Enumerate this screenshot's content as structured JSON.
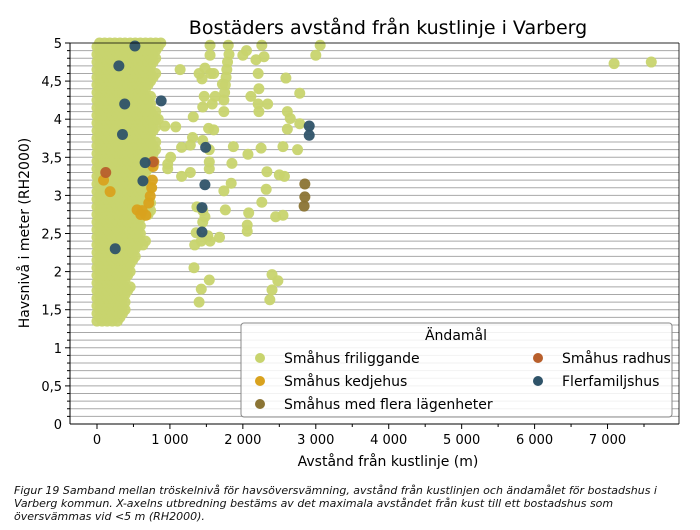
{
  "chart_data": {
    "type": "scatter",
    "title": "Bostäders avstånd från kustlinje i Varberg",
    "xlabel": "Avstånd från kustlinje (m)",
    "ylabel": "Havsnivå i meter (RH2000)",
    "xlim": [
      -370,
      7980
    ],
    "ylim": [
      0,
      5
    ],
    "x_ticks": [
      0,
      1000,
      2000,
      3000,
      4000,
      5000,
      6000,
      7000
    ],
    "x_tick_labels": [
      "0",
      "1 000",
      "2 000",
      "3 000",
      "4 000",
      "5 000",
      "6 000",
      "7 000"
    ],
    "y_ticks": [
      0,
      0.5,
      1,
      1.5,
      2,
      2.5,
      3,
      3.5,
      4,
      4.5,
      5
    ],
    "y_tick_labels": [
      "0",
      "0,5",
      "1",
      "1,5",
      "2",
      "2,5",
      "3",
      "3,5",
      "4",
      "4,5",
      "5"
    ],
    "grid": "horizontal, every 0.1 m",
    "legend": {
      "title": "Ändamål",
      "placement": "lower-right"
    },
    "series": [
      {
        "name": "Småhus friliggande",
        "color": "#c8d46e",
        "band_rows_y_xmin_xmax": [
          [
            1.35,
            0,
            300
          ],
          [
            1.45,
            0,
            350
          ],
          [
            1.55,
            0,
            400
          ],
          [
            1.65,
            0,
            380
          ],
          [
            1.75,
            0,
            420
          ],
          [
            1.85,
            0,
            400
          ],
          [
            1.95,
            0,
            450
          ],
          [
            2.05,
            0,
            480
          ],
          [
            2.15,
            0,
            500
          ],
          [
            2.25,
            0,
            550
          ],
          [
            2.35,
            0,
            650
          ],
          [
            2.45,
            0,
            580
          ],
          [
            2.55,
            0,
            560
          ],
          [
            2.65,
            0,
            600
          ],
          [
            2.75,
            0,
            700
          ],
          [
            2.85,
            0,
            720
          ],
          [
            2.95,
            0,
            650
          ],
          [
            3.05,
            0,
            700
          ],
          [
            3.15,
            0,
            650
          ],
          [
            3.25,
            0,
            680
          ],
          [
            3.35,
            0,
            700
          ],
          [
            3.45,
            0,
            720
          ],
          [
            3.55,
            0,
            780
          ],
          [
            3.65,
            0,
            800
          ],
          [
            3.75,
            0,
            750
          ],
          [
            3.85,
            0,
            820
          ],
          [
            3.95,
            0,
            780
          ],
          [
            4.05,
            0,
            800
          ],
          [
            4.15,
            0,
            760
          ],
          [
            4.25,
            0,
            700
          ],
          [
            4.35,
            0,
            650
          ],
          [
            4.45,
            0,
            700
          ],
          [
            4.55,
            0,
            780
          ],
          [
            4.65,
            0,
            760
          ],
          [
            4.75,
            0,
            800
          ],
          [
            4.85,
            0,
            820
          ],
          [
            4.95,
            0,
            850
          ]
        ],
        "points": [
          [
            1140,
            4.65
          ],
          [
            1550,
            4.97
          ],
          [
            1560,
            4.6
          ],
          [
            1440,
            4.53
          ],
          [
            1480,
            4.67
          ],
          [
            1550,
            4.84
          ],
          [
            2000,
            4.84
          ],
          [
            1800,
            4.97
          ],
          [
            1810,
            4.85
          ],
          [
            1790,
            4.75
          ],
          [
            1780,
            4.65
          ],
          [
            1770,
            4.55
          ],
          [
            1760,
            4.45
          ],
          [
            1750,
            4.35
          ],
          [
            1740,
            4.25
          ],
          [
            1720,
            4.46
          ],
          [
            1620,
            4.3
          ],
          [
            1580,
            4.2
          ],
          [
            1470,
            4.3
          ],
          [
            1450,
            4.16
          ],
          [
            1740,
            4.1
          ],
          [
            2260,
            4.97
          ],
          [
            2050,
            4.9
          ],
          [
            2210,
            4.6
          ],
          [
            2220,
            4.4
          ],
          [
            2110,
            4.3
          ],
          [
            2210,
            4.2
          ],
          [
            2340,
            4.2
          ],
          [
            2220,
            4.1
          ],
          [
            2290,
            4.82
          ],
          [
            2180,
            4.78
          ],
          [
            2590,
            4.54
          ],
          [
            2780,
            4.34
          ],
          [
            3060,
            4.97
          ],
          [
            3000,
            4.84
          ],
          [
            7090,
            4.73
          ],
          [
            7600,
            4.75
          ],
          [
            2610,
            4.1
          ],
          [
            2650,
            4.01
          ],
          [
            2610,
            3.87
          ],
          [
            2780,
            3.94
          ],
          [
            2750,
            3.6
          ],
          [
            2550,
            3.64
          ],
          [
            2250,
            3.62
          ],
          [
            2070,
            3.54
          ],
          [
            1870,
            3.64
          ],
          [
            1850,
            3.42
          ],
          [
            1840,
            3.16
          ],
          [
            1760,
            2.81
          ],
          [
            1740,
            3.06
          ],
          [
            2080,
            2.77
          ],
          [
            2060,
            2.61
          ],
          [
            2060,
            2.53
          ],
          [
            2260,
            2.91
          ],
          [
            2320,
            3.08
          ],
          [
            2330,
            3.31
          ],
          [
            2450,
            2.72
          ],
          [
            2550,
            2.74
          ],
          [
            2500,
            3.27
          ],
          [
            2570,
            3.25
          ],
          [
            2400,
            1.96
          ],
          [
            2480,
            1.88
          ],
          [
            2400,
            1.76
          ],
          [
            2370,
            1.63
          ],
          [
            1540,
            1.89
          ],
          [
            1430,
            1.77
          ],
          [
            1400,
            1.6
          ],
          [
            1330,
            2.05
          ],
          [
            1340,
            2.35
          ],
          [
            1360,
            2.51
          ],
          [
            1430,
            2.4
          ],
          [
            1550,
            2.4
          ],
          [
            1680,
            2.45
          ],
          [
            1520,
            2.47
          ],
          [
            1450,
            2.65
          ],
          [
            1480,
            2.72
          ],
          [
            1450,
            2.8
          ],
          [
            1370,
            2.85
          ],
          [
            1540,
            3.35
          ],
          [
            1540,
            3.44
          ],
          [
            1540,
            3.6
          ],
          [
            1600,
            3.86
          ],
          [
            1530,
            3.88
          ],
          [
            1450,
            3.72
          ],
          [
            1310,
            3.76
          ],
          [
            1280,
            3.66
          ],
          [
            1160,
            3.63
          ],
          [
            1160,
            3.25
          ],
          [
            1280,
            3.3
          ],
          [
            1320,
            4.03
          ],
          [
            1080,
            3.9
          ],
          [
            970,
            3.41
          ],
          [
            970,
            3.35
          ],
          [
            840,
            4.0
          ],
          [
            930,
            3.91
          ],
          [
            1010,
            3.5
          ],
          [
            1400,
            4.6
          ],
          [
            1600,
            4.6
          ]
        ]
      },
      {
        "name": "Småhus kedjehus",
        "color": "#d9a21e",
        "points": [
          [
            780,
            3.44
          ],
          [
            770,
            3.38
          ],
          [
            760,
            3.2
          ],
          [
            750,
            3.1
          ],
          [
            730,
            2.99
          ],
          [
            710,
            2.9
          ],
          [
            670,
            2.74
          ],
          [
            620,
            2.8
          ],
          [
            550,
            2.81
          ],
          [
            600,
            2.75
          ],
          [
            180,
            3.05
          ],
          [
            90,
            3.2
          ]
        ]
      },
      {
        "name": "Småhus med flera lägenheter",
        "color": "#8b7434",
        "points": [
          [
            2850,
            3.15
          ],
          [
            2850,
            2.98
          ],
          [
            2840,
            2.86
          ]
        ]
      },
      {
        "name": "Småhus radhus",
        "color": "#b85f2c",
        "points": [
          [
            770,
            3.44
          ],
          [
            120,
            3.3
          ]
        ]
      },
      {
        "name": "Flerfamiljshus",
        "color": "#2f5369",
        "points": [
          [
            880,
            4.24
          ],
          [
            2910,
            3.91
          ],
          [
            2910,
            3.79
          ],
          [
            1490,
            3.63
          ],
          [
            660,
            3.43
          ],
          [
            1480,
            3.14
          ],
          [
            630,
            3.19
          ],
          [
            1440,
            2.84
          ],
          [
            1440,
            2.52
          ],
          [
            520,
            4.96
          ],
          [
            300,
            4.7
          ],
          [
            380,
            4.2
          ],
          [
            350,
            3.8
          ],
          [
            250,
            2.3
          ]
        ]
      }
    ]
  },
  "caption": "Figur 19 Samband mellan tröskelnivå för havsöversvämning, avstånd från kustlinjen och ändamålet för bostadshus i Varberg kommun. X-axelns utbredning bestäms av det maximala avståndet från kust till ett bostadshus som översvämmas vid <5 m (RH2000)."
}
